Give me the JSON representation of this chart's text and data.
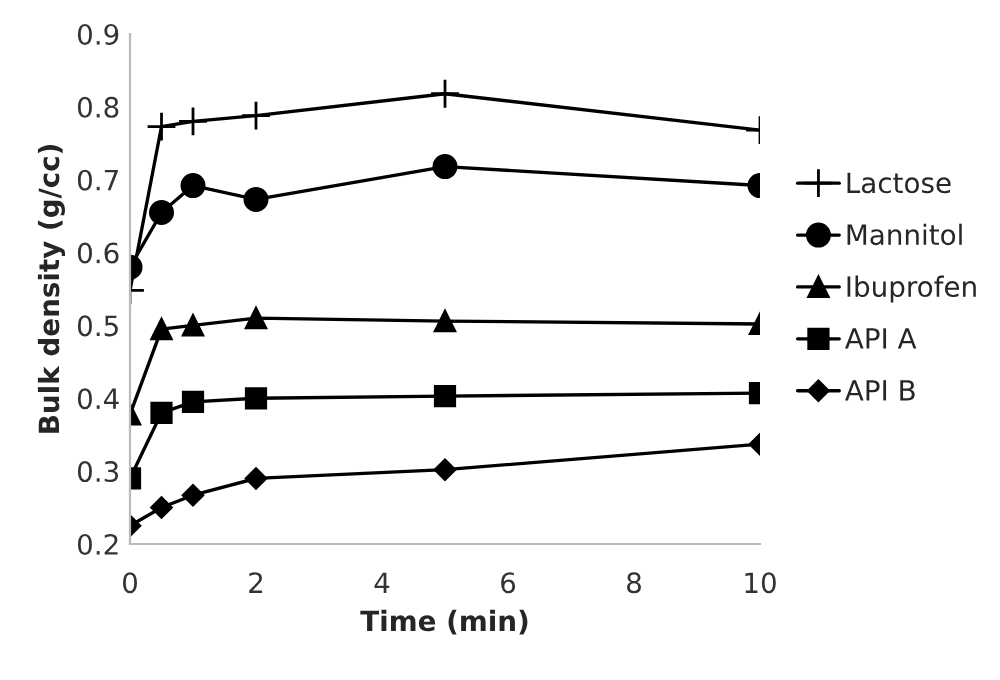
{
  "chart_data": {
    "type": "line",
    "xlabel": "Time (min)",
    "ylabel": "Bulk density (g/cc)",
    "x": [
      0,
      0.5,
      1,
      2,
      5,
      10
    ],
    "xlim": [
      0,
      10
    ],
    "xticks": [
      0,
      2,
      4,
      6,
      8,
      10
    ],
    "ylim": [
      0.2,
      0.9
    ],
    "yticks": [
      0.2,
      0.3,
      0.4,
      0.5,
      0.6,
      0.7,
      0.8,
      0.9
    ],
    "grid": false,
    "legend": "right",
    "line_style": "solid",
    "series": [
      {
        "name": "Lactose",
        "color": "#000000",
        "marker": "cross",
        "values": [
          0.548,
          0.773,
          0.78,
          0.788,
          0.818,
          0.768
        ]
      },
      {
        "name": "Mannitol",
        "color": "#000000",
        "marker": "circle",
        "values": [
          0.58,
          0.655,
          0.692,
          0.673,
          0.718,
          0.692
        ]
      },
      {
        "name": "Ibuprofen",
        "color": "#000000",
        "marker": "triangle",
        "values": [
          0.378,
          0.495,
          0.5,
          0.51,
          0.506,
          0.502
        ]
      },
      {
        "name": "API A",
        "color": "#000000",
        "marker": "square",
        "values": [
          0.29,
          0.38,
          0.395,
          0.4,
          0.403,
          0.407
        ]
      },
      {
        "name": "API B",
        "color": "#000000",
        "marker": "diamond",
        "values": [
          0.225,
          0.25,
          0.267,
          0.29,
          0.302,
          0.337
        ]
      }
    ]
  }
}
